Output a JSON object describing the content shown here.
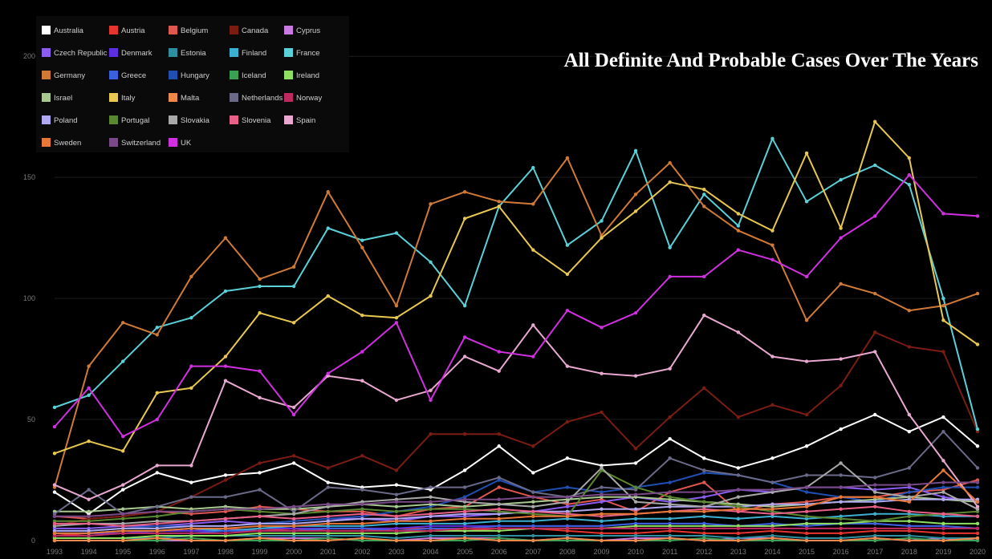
{
  "chart_data": {
    "type": "line",
    "title": "All Definite And Probable Cases Over The Years",
    "xlabel": "",
    "ylabel": "",
    "x": [
      "1993",
      "1994",
      "1995",
      "1996",
      "1997",
      "1998",
      "1999",
      "2000",
      "2001",
      "2002",
      "2003",
      "2004",
      "2005",
      "2006",
      "2007",
      "2008",
      "2009",
      "2010",
      "2011",
      "2012",
      "2013",
      "2014",
      "2015",
      "2016",
      "2017",
      "2018",
      "2019",
      "2020"
    ],
    "yticks": [
      "0",
      "50",
      "100",
      "150",
      "200"
    ],
    "ylim": [
      0,
      210
    ],
    "grid": true,
    "legend_position": "top-left",
    "series": [
      {
        "name": "Australia",
        "color": "#ffffff",
        "values": [
          20,
          11,
          21,
          28,
          24,
          27,
          28,
          32,
          24,
          22,
          23,
          21,
          29,
          39,
          28,
          34,
          31,
          32,
          42,
          34,
          30,
          34,
          39,
          46,
          52,
          45,
          51,
          39
        ]
      },
      {
        "name": "Austria",
        "color": "#e8342e",
        "values": [
          2,
          3,
          3,
          4,
          4,
          5,
          4,
          5,
          4,
          4,
          5,
          5,
          4,
          5,
          5,
          4,
          3,
          3,
          4,
          3,
          3,
          4,
          3,
          3,
          4,
          4,
          3,
          3
        ]
      },
      {
        "name": "Belgium",
        "color": "#e0574f",
        "values": [
          10,
          9,
          10,
          12,
          11,
          12,
          14,
          13,
          12,
          12,
          10,
          13,
          14,
          22,
          18,
          15,
          17,
          12,
          20,
          24,
          12,
          15,
          16,
          18,
          18,
          20,
          21,
          25
        ]
      },
      {
        "name": "Canada",
        "color": "#7a1c12",
        "values": [
          6,
          9,
          10,
          12,
          18,
          25,
          32,
          35,
          30,
          35,
          29,
          44,
          44,
          44,
          39,
          49,
          53,
          38,
          51,
          63,
          51,
          56,
          52,
          64,
          86,
          80,
          78,
          45
        ]
      },
      {
        "name": "Cyprus",
        "color": "#c87ae0",
        "values": [
          0,
          0,
          0,
          0,
          0,
          0,
          1,
          1,
          1,
          0,
          0,
          1,
          1,
          1,
          0,
          1,
          0,
          1,
          1,
          0,
          1,
          1,
          0,
          0,
          1,
          0,
          1,
          0
        ]
      },
      {
        "name": "Czech Republic",
        "color": "#8b5cf0",
        "values": [
          5,
          5,
          6,
          6,
          7,
          8,
          7,
          8,
          9,
          9,
          8,
          10,
          10,
          11,
          12,
          14,
          16,
          18,
          16,
          18,
          21,
          20,
          22,
          22,
          21,
          22,
          18,
          16
        ]
      },
      {
        "name": "Denmark",
        "color": "#5c2fe0",
        "values": [
          3,
          3,
          3,
          4,
          4,
          4,
          5,
          5,
          5,
          5,
          5,
          6,
          6,
          6,
          6,
          6,
          6,
          7,
          7,
          7,
          6,
          6,
          7,
          7,
          7,
          6,
          6,
          5
        ]
      },
      {
        "name": "Estonia",
        "color": "#2d8fa0",
        "values": [
          1,
          1,
          1,
          1,
          2,
          2,
          2,
          2,
          2,
          2,
          1,
          2,
          2,
          2,
          2,
          2,
          2,
          2,
          2,
          2,
          1,
          2,
          1,
          1,
          2,
          2,
          1,
          1
        ]
      },
      {
        "name": "Finland",
        "color": "#3cb0d0",
        "values": [
          3,
          3,
          4,
          4,
          5,
          4,
          5,
          6,
          6,
          6,
          7,
          7,
          7,
          8,
          8,
          9,
          8,
          9,
          9,
          10,
          9,
          10,
          9,
          10,
          11,
          11,
          10,
          10
        ]
      },
      {
        "name": "France",
        "color": "#5ad0d8",
        "values": [
          55,
          60,
          74,
          88,
          92,
          103,
          105,
          105,
          129,
          124,
          127,
          115,
          97,
          138,
          154,
          122,
          132,
          161,
          121,
          143,
          130,
          166,
          140,
          149,
          155,
          147,
          100,
          46
        ]
      },
      {
        "name": "Germany",
        "color": "#d07a36",
        "values": [
          22,
          72,
          90,
          85,
          109,
          125,
          108,
          113,
          144,
          121,
          97,
          139,
          144,
          140,
          139,
          158,
          126,
          143,
          156,
          138,
          128,
          122,
          91,
          106,
          102,
          95,
          97,
          102
        ]
      },
      {
        "name": "Greece",
        "color": "#3a60e0",
        "values": [
          2,
          2,
          3,
          3,
          3,
          4,
          4,
          4,
          5,
          5,
          4,
          5,
          5,
          6,
          6,
          6,
          6,
          7,
          7,
          7,
          6,
          7,
          6,
          7,
          7,
          6,
          6,
          5
        ]
      },
      {
        "name": "Hungary",
        "color": "#1f4fb0",
        "values": [
          4,
          4,
          5,
          6,
          6,
          6,
          7,
          8,
          9,
          10,
          12,
          14,
          18,
          25,
          20,
          22,
          20,
          22,
          24,
          28,
          27,
          24,
          20,
          18,
          16,
          20,
          22,
          22
        ]
      },
      {
        "name": "Iceland",
        "color": "#3aa054",
        "values": [
          0,
          0,
          0,
          0,
          1,
          0,
          0,
          0,
          1,
          0,
          0,
          0,
          0,
          1,
          0,
          0,
          0,
          0,
          0,
          1,
          0,
          0,
          0,
          0,
          0,
          1,
          0,
          0
        ]
      },
      {
        "name": "Ireland",
        "color": "#8ee060",
        "values": [
          1,
          1,
          1,
          2,
          2,
          2,
          3,
          3,
          3,
          3,
          3,
          4,
          4,
          4,
          5,
          5,
          5,
          6,
          6,
          6,
          6,
          6,
          7,
          7,
          8,
          8,
          7,
          7
        ]
      },
      {
        "name": "Israel",
        "color": "#a8c890",
        "values": [
          12,
          12,
          13,
          14,
          13,
          14,
          13,
          13,
          14,
          15,
          14,
          15,
          14,
          15,
          16,
          17,
          18,
          18,
          17,
          16,
          15,
          14,
          15,
          16,
          17,
          18,
          17,
          16
        ]
      },
      {
        "name": "Italy",
        "color": "#e8c850",
        "values": [
          36,
          41,
          37,
          61,
          63,
          76,
          94,
          90,
          101,
          93,
          92,
          101,
          133,
          138,
          120,
          110,
          125,
          136,
          148,
          145,
          135,
          128,
          160,
          129,
          173,
          158,
          91,
          81
        ]
      },
      {
        "name": "Malta",
        "color": "#f08848",
        "values": [
          0,
          0,
          0,
          1,
          0,
          0,
          1,
          0,
          0,
          1,
          0,
          0,
          1,
          0,
          0,
          1,
          0,
          0,
          1,
          0,
          0,
          1,
          0,
          0,
          1,
          0,
          0,
          1
        ]
      },
      {
        "name": "Netherlands",
        "color": "#6a6a88",
        "values": [
          11,
          21,
          11,
          14,
          18,
          18,
          21,
          12,
          22,
          21,
          19,
          22,
          22,
          26,
          20,
          18,
          22,
          21,
          34,
          29,
          27,
          24,
          27,
          27,
          26,
          30,
          45,
          30
        ]
      },
      {
        "name": "Norway",
        "color": "#c02860",
        "values": [
          2,
          2,
          3,
          3,
          3,
          3,
          4,
          4,
          4,
          4,
          4,
          4,
          5,
          5,
          5,
          5,
          5,
          5,
          5,
          5,
          5,
          5,
          5,
          5,
          5,
          5,
          5,
          5
        ]
      },
      {
        "name": "Poland",
        "color": "#b0a8f0",
        "values": [
          4,
          4,
          5,
          5,
          6,
          6,
          7,
          7,
          8,
          9,
          9,
          10,
          11,
          11,
          12,
          12,
          13,
          13,
          14,
          14,
          14,
          15,
          15,
          16,
          16,
          17,
          17,
          17
        ]
      },
      {
        "name": "Portugal",
        "color": "#5a8830",
        "values": [
          8,
          8,
          9,
          10,
          12,
          13,
          12,
          11,
          12,
          13,
          12,
          13,
          13,
          12,
          11,
          10,
          29,
          22,
          18,
          16,
          14,
          12,
          10,
          9,
          8,
          10,
          11,
          12
        ]
      },
      {
        "name": "Slovakia",
        "color": "#a8a8a8",
        "values": [
          6,
          7,
          7,
          8,
          8,
          9,
          10,
          11,
          14,
          16,
          17,
          18,
          16,
          15,
          14,
          16,
          30,
          16,
          15,
          14,
          18,
          20,
          22,
          32,
          20,
          18,
          20,
          13
        ]
      },
      {
        "name": "Slovenia",
        "color": "#e86088",
        "values": [
          7,
          7,
          6,
          7,
          8,
          9,
          10,
          9,
          10,
          11,
          10,
          11,
          12,
          13,
          12,
          11,
          10,
          11,
          12,
          13,
          12,
          11,
          12,
          13,
          14,
          12,
          11,
          10
        ]
      },
      {
        "name": "Spain",
        "color": "#e8a8d0",
        "values": [
          23,
          17,
          23,
          31,
          31,
          66,
          59,
          55,
          68,
          66,
          58,
          62,
          76,
          70,
          89,
          72,
          69,
          68,
          71,
          93,
          86,
          76,
          74,
          75,
          78,
          52,
          33,
          14
        ]
      },
      {
        "name": "Sweden",
        "color": "#e87838",
        "values": [
          3,
          3,
          4,
          4,
          5,
          5,
          6,
          6,
          7,
          7,
          8,
          8,
          9,
          9,
          10,
          10,
          11,
          11,
          12,
          12,
          13,
          13,
          14,
          18,
          18,
          16,
          29,
          16
        ]
      },
      {
        "name": "Switzerland",
        "color": "#7a4a88",
        "values": [
          10,
          10,
          11,
          12,
          12,
          13,
          13,
          14,
          15,
          15,
          16,
          16,
          17,
          17,
          18,
          18,
          19,
          19,
          20,
          20,
          21,
          21,
          22,
          22,
          23,
          23,
          24,
          24
        ]
      },
      {
        "name": "UK",
        "color": "#d030e0",
        "values": [
          47,
          63,
          43,
          50,
          72,
          72,
          70,
          52,
          69,
          78,
          90,
          58,
          84,
          78,
          76,
          95,
          88,
          94,
          109,
          109,
          120,
          116,
          109,
          125,
          134,
          151,
          135,
          134
        ]
      }
    ]
  }
}
